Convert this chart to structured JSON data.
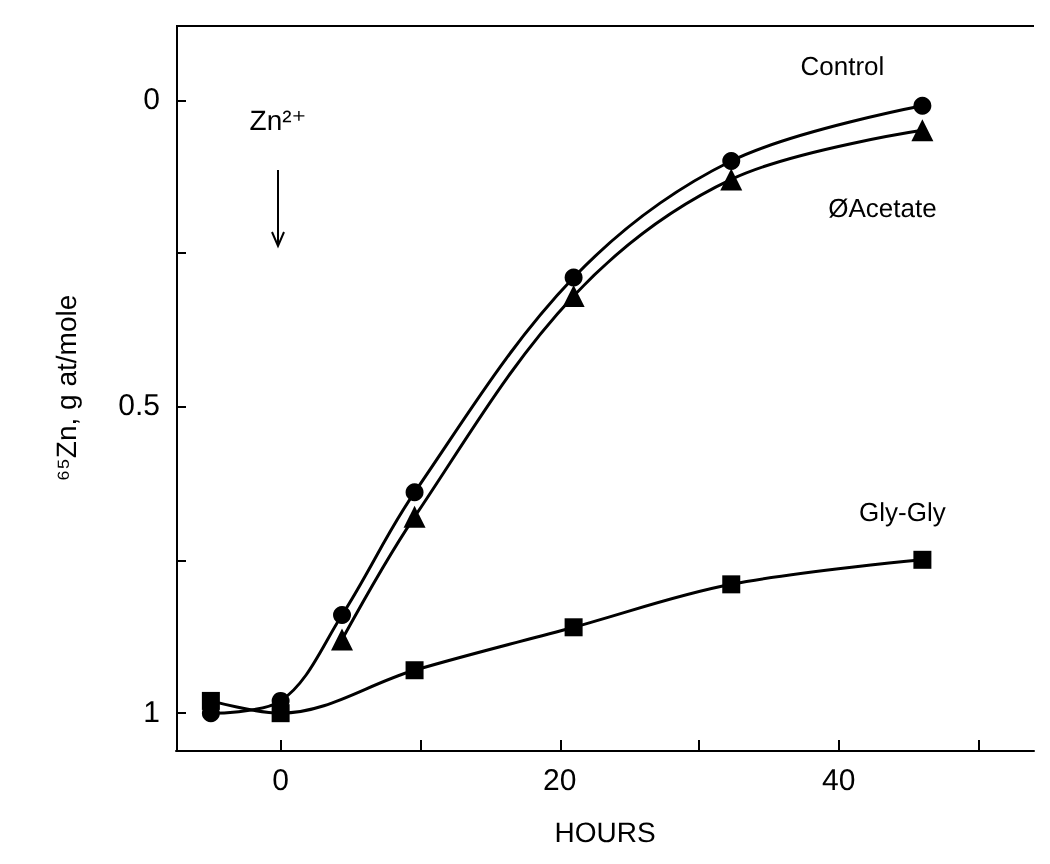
{
  "chart_data": {
    "type": "line",
    "xlabel": "HOURS",
    "ylabel": "⁶⁵Zn, g at/mole",
    "xlim": [
      -7.5,
      54
    ],
    "xticks": [
      0,
      {
        "value": 10,
        "label": null
      },
      20,
      {
        "value": 30,
        "label": null
      },
      40,
      {
        "value": 50,
        "label": null
      }
    ],
    "ylim": [
      1.06,
      -0.12
    ],
    "yticks": [
      0,
      {
        "value": 0.25,
        "label": null
      },
      0.5,
      {
        "value": 0.75,
        "label": null
      },
      1.0
    ],
    "grid": false,
    "legend": false,
    "line_style": "solid",
    "series": [
      {
        "name": "Control",
        "color": "#000000",
        "marker": "circle",
        "x": [
          -5,
          0,
          4.4,
          9.6,
          21,
          32.3,
          46
        ],
        "values": [
          1.0,
          0.98,
          0.84,
          0.64,
          0.29,
          0.1,
          0.01
        ]
      },
      {
        "name": "ØAcetate",
        "color": "#000000",
        "marker": "triangle",
        "x": [
          4.4,
          9.6,
          21,
          32.3,
          46
        ],
        "values": [
          0.88,
          0.68,
          0.32,
          0.13,
          0.05
        ]
      },
      {
        "name": "Gly-Gly",
        "color": "#000000",
        "marker": "square",
        "x": [
          -5,
          0,
          9.6,
          21,
          32.3,
          46
        ],
        "values": [
          0.98,
          1.0,
          0.93,
          0.86,
          0.79,
          0.75
        ]
      }
    ],
    "annotations": [
      "Zn²⁺"
    ]
  }
}
